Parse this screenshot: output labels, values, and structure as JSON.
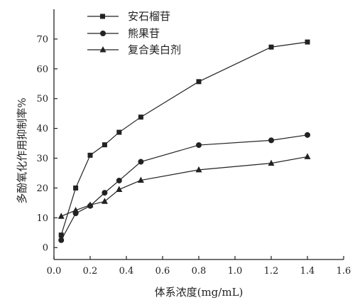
{
  "chart_data": {
    "type": "line",
    "title": "",
    "xlabel": "体系浓度(mg/mL)",
    "ylabel": "多酚氧化作用抑制率%",
    "xlim": [
      0.0,
      1.6
    ],
    "ylim": [
      -4,
      80
    ],
    "x_ticks": [
      "0.0",
      "0.2",
      "0.4",
      "0.6",
      "0.8",
      "1.0",
      "1.2",
      "1.4",
      "1.6"
    ],
    "y_ticks": [
      "0",
      "10",
      "20",
      "30",
      "40",
      "50",
      "60",
      "70"
    ],
    "grid": false,
    "legend_position": "top-left",
    "series": [
      {
        "name": "安石榴苷",
        "marker": "square",
        "x": [
          0.04,
          0.12,
          0.2,
          0.28,
          0.36,
          0.48,
          0.8,
          1.2,
          1.4
        ],
        "values": [
          4.2,
          20.0,
          31.0,
          34.5,
          38.7,
          43.8,
          55.7,
          67.3,
          69.0
        ]
      },
      {
        "name": "熊果苷",
        "marker": "circle",
        "x": [
          0.04,
          0.12,
          0.2,
          0.28,
          0.36,
          0.48,
          0.8,
          1.2,
          1.4
        ],
        "values": [
          2.5,
          11.5,
          14.0,
          18.4,
          22.5,
          28.8,
          34.4,
          36.0,
          37.8
        ]
      },
      {
        "name": "复合美白剂",
        "marker": "triangle",
        "x": [
          0.04,
          0.12,
          0.2,
          0.28,
          0.36,
          0.48,
          0.8,
          1.2,
          1.4
        ],
        "values": [
          10.5,
          12.5,
          14.3,
          15.5,
          19.5,
          22.6,
          26.1,
          28.3,
          30.5
        ]
      }
    ],
    "colors": {
      "line": "#222222",
      "axis": "#222222"
    }
  }
}
